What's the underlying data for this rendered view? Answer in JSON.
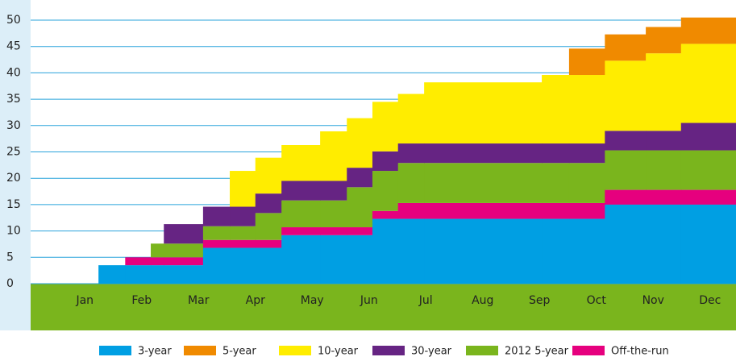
{
  "chart_data": {
    "type": "stacked-step-area",
    "categories": [
      "Jan",
      "Feb",
      "Mar",
      "Apr",
      "May",
      "Jun",
      "Jul",
      "Aug",
      "Sep",
      "Oct",
      "Nov",
      "Dec"
    ],
    "x": [
      0.26,
      0.74,
      1.21,
      1.66,
      1.89,
      2.58,
      3.05,
      3.5,
      3.96,
      4.64,
      5.11,
      5.56,
      6.01,
      6.47,
      8.54,
      9.02,
      9.65,
      10.37,
      10.99
    ],
    "xlim": [
      0,
      12
    ],
    "ylim": [
      0,
      50
    ],
    "yticks": [
      0,
      5,
      10,
      15,
      20,
      25,
      30,
      35,
      40,
      45,
      50
    ],
    "grid": true,
    "series": [
      {
        "name": "3-year",
        "color": "#009fe3",
        "values": [
          0,
          3.5,
          3.5,
          3.5,
          3.5,
          6.8,
          6.8,
          6.8,
          9.2,
          9.2,
          9.2,
          12.3,
          12.3,
          12.3,
          12.3,
          12.3,
          15,
          15,
          15
        ]
      },
      {
        "name": "5-year",
        "color": "#f08a00",
        "values": [
          0,
          0,
          0,
          0,
          0,
          0,
          0,
          0,
          0,
          0,
          0,
          0,
          0,
          0,
          0,
          5,
          5,
          5,
          5
        ]
      },
      {
        "name": "10-year",
        "color": "#ffed00",
        "values": [
          0,
          0,
          0,
          0,
          0,
          0,
          6.8,
          6.8,
          6.8,
          9.4,
          9.4,
          9.4,
          9.4,
          11.6,
          13,
          13,
          13.3,
          14.7,
          15
        ]
      },
      {
        "name": "30-year",
        "color": "#662483",
        "values": [
          0,
          0,
          0,
          0,
          3.7,
          3.7,
          3.7,
          3.7,
          3.7,
          3.7,
          3.7,
          3.7,
          3.7,
          3.7,
          3.7,
          3.7,
          3.7,
          3.7,
          5.2
        ]
      },
      {
        "name": "2012 5-year",
        "color": "#7ab51d",
        "values": [
          0,
          0,
          0,
          2.6,
          2.6,
          2.6,
          2.6,
          5.1,
          5.1,
          5.1,
          7.6,
          7.6,
          7.6,
          7.6,
          7.6,
          7.6,
          7.5,
          7.5,
          7.5
        ]
      },
      {
        "name": "Off-the-run",
        "color": "#e6007e",
        "values": [
          0,
          0,
          1.5,
          1.5,
          1.5,
          1.5,
          1.5,
          1.5,
          1.5,
          1.5,
          1.5,
          1.5,
          3,
          3,
          3,
          3,
          2.8,
          2.8,
          2.8
        ]
      }
    ]
  }
}
